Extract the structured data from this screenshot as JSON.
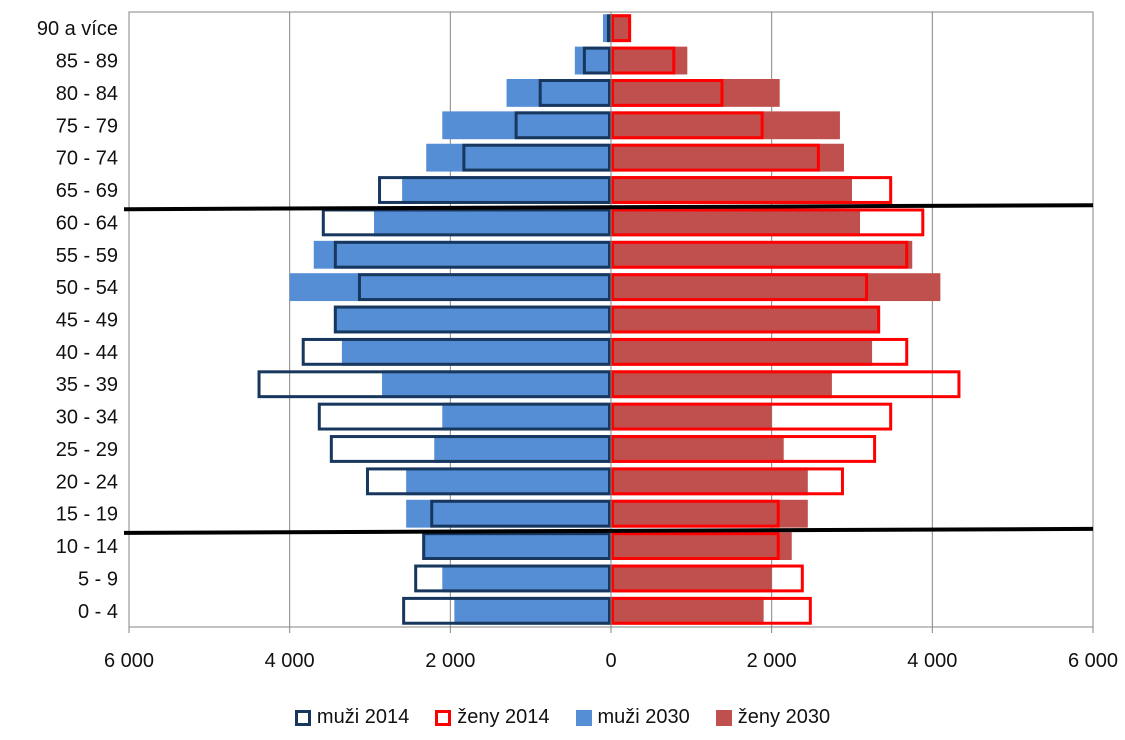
{
  "chart_data": {
    "type": "bar",
    "orientation": "horizontal",
    "layout": "population-pyramid",
    "categories": [
      "0 - 4",
      "5 - 9",
      "10 - 14",
      "15 - 19",
      "20 - 24",
      "25 - 29",
      "30 - 34",
      "35 - 39",
      "40 - 44",
      "45 - 49",
      "50 - 54",
      "55 - 59",
      "60 - 64",
      "65 - 69",
      "70 - 74",
      "75 - 79",
      "80 - 84",
      "85 - 89",
      "90 a více"
    ],
    "series": [
      {
        "name": "muži 2014",
        "side": "left",
        "style": "outline",
        "color": "#17375e",
        "values": [
          2600,
          2450,
          2350,
          2250,
          3050,
          3500,
          3650,
          4400,
          3850,
          3450,
          3150,
          3450,
          3600,
          2900,
          1850,
          1200,
          900,
          350,
          50
        ]
      },
      {
        "name": "ženy 2014",
        "side": "right",
        "style": "outline",
        "color": "#ff0000",
        "values": [
          2500,
          2400,
          2100,
          2100,
          2900,
          3300,
          3500,
          4350,
          3700,
          3350,
          3200,
          3700,
          3900,
          3500,
          2600,
          1900,
          1400,
          800,
          250
        ]
      },
      {
        "name": "muži 2030",
        "side": "left",
        "style": "filled",
        "color": "#558ed5",
        "values": [
          1950,
          2100,
          2350,
          2550,
          2550,
          2200,
          2100,
          2850,
          3350,
          3450,
          4000,
          3700,
          2950,
          2600,
          2300,
          2100,
          1300,
          450,
          100
        ]
      },
      {
        "name": "ženy 2030",
        "side": "right",
        "style": "filled",
        "color": "#c0504d",
        "values": [
          1900,
          2000,
          2250,
          2450,
          2450,
          2150,
          2000,
          2750,
          3250,
          3350,
          4100,
          3750,
          3100,
          3000,
          2900,
          2850,
          2100,
          950,
          250
        ]
      }
    ],
    "xlim": [
      -6000,
      6000
    ],
    "xticks": [
      -6000,
      -4000,
      -2000,
      0,
      2000,
      4000,
      6000
    ],
    "xtick_labels": [
      "6 000",
      "4 000",
      "2 000",
      "0",
      "2 000",
      "4 000",
      "6 000"
    ],
    "title": "",
    "xlabel": "",
    "ylabel": "",
    "grid": "vertical",
    "legend_position": "bottom",
    "reference_lines": [
      {
        "between": [
          "60 - 64",
          "65 - 69"
        ],
        "color": "#000000"
      },
      {
        "between": [
          "10 - 14",
          "15 - 19"
        ],
        "color": "#000000"
      }
    ]
  },
  "legend": {
    "items": [
      {
        "label": "muži 2014"
      },
      {
        "label": "ženy 2014"
      },
      {
        "label": "muži 2030"
      },
      {
        "label": "ženy 2030"
      }
    ]
  }
}
